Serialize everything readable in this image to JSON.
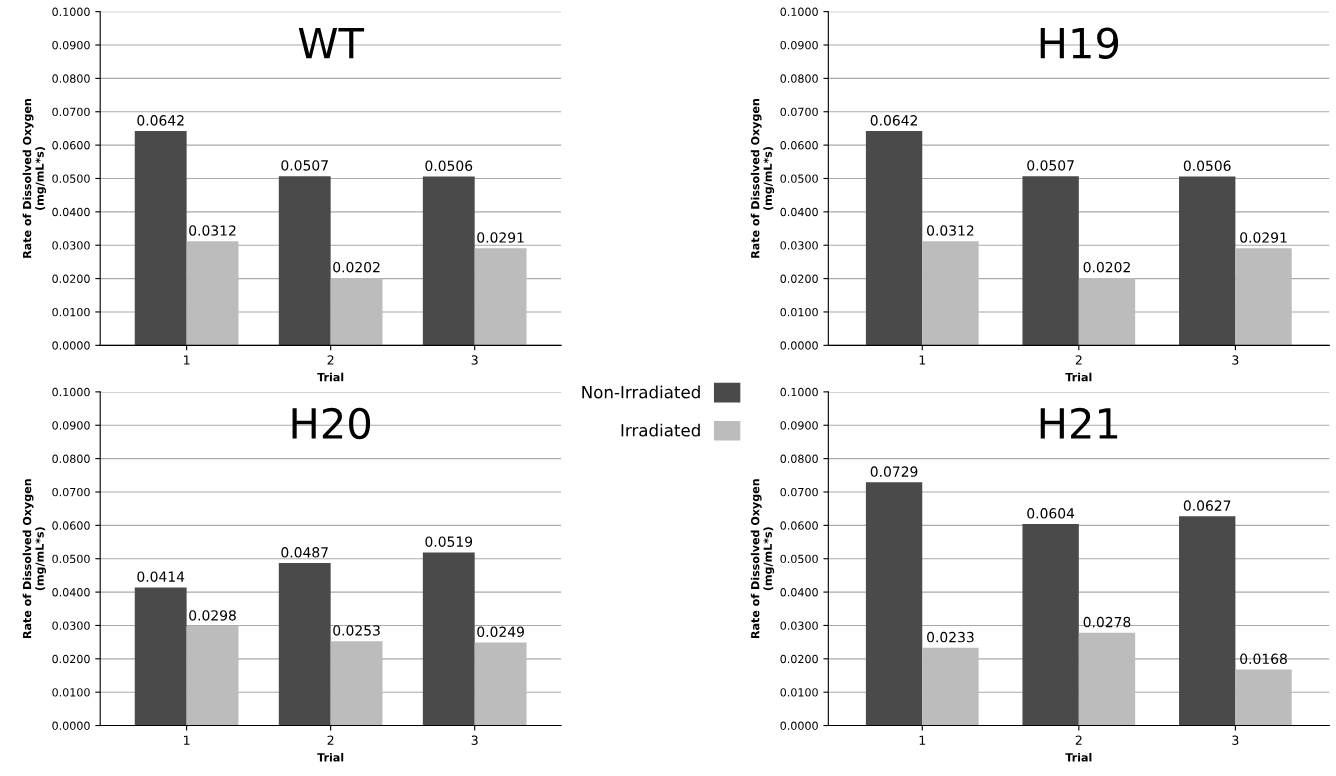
{
  "chart_data": [
    {
      "type": "bar",
      "title": "WT",
      "xlabel": "Trial",
      "ylabel": "Rate of Dissolved Oxygen\n(mg/mL*s)",
      "categories": [
        "1",
        "2",
        "3"
      ],
      "series": [
        {
          "color": "#4a4a4a",
          "values": [
            0.0642,
            0.0507,
            0.0506
          ]
        },
        {
          "color": "#bcbcbc",
          "values": [
            0.0312,
            0.0202,
            0.0291
          ]
        }
      ],
      "ylim": [
        0,
        0.1
      ],
      "yticks": [
        {
          "value": 0,
          "label": "0.0000"
        },
        {
          "value": 0.01,
          "label": "0.0100"
        },
        {
          "value": 0.02,
          "label": "0.0200"
        },
        {
          "value": 0.03,
          "label": "0.0300"
        },
        {
          "value": 0.04,
          "label": "0.0400"
        },
        {
          "value": 0.05,
          "label": "0.0500"
        },
        {
          "value": 0.06,
          "label": "0.0600"
        },
        {
          "value": 0.07,
          "label": "0.0700"
        },
        {
          "value": 0.08,
          "label": "0.0800"
        },
        {
          "value": 0.09,
          "label": "0.0900"
        },
        {
          "value": 0.1,
          "label": "0.1000"
        }
      ],
      "grid": "y",
      "data_labels": true
    },
    {
      "type": "bar",
      "title": "H19",
      "xlabel": "Trial",
      "ylabel": "Rate of Dissolved Oxygen\n(mg/mL*s)",
      "categories": [
        "1",
        "2",
        "3"
      ],
      "series": [
        {
          "color": "#4a4a4a",
          "values": [
            0.0642,
            0.0507,
            0.0506
          ]
        },
        {
          "color": "#bcbcbc",
          "values": [
            0.0312,
            0.0202,
            0.0291
          ]
        }
      ],
      "ylim": [
        0,
        0.1
      ],
      "yticks": [
        {
          "value": 0,
          "label": "0.0000"
        },
        {
          "value": 0.01,
          "label": "0.0100"
        },
        {
          "value": 0.02,
          "label": "0.0200"
        },
        {
          "value": 0.03,
          "label": "0.0300"
        },
        {
          "value": 0.04,
          "label": "0.0400"
        },
        {
          "value": 0.05,
          "label": "0.0500"
        },
        {
          "value": 0.06,
          "label": "0.0600"
        },
        {
          "value": 0.07,
          "label": "0.0700"
        },
        {
          "value": 0.08,
          "label": "0.0800"
        },
        {
          "value": 0.09,
          "label": "0.0900"
        },
        {
          "value": 0.1,
          "label": "0.1000"
        }
      ],
      "grid": "y",
      "data_labels": true
    },
    {
      "type": "bar",
      "title": "H20",
      "xlabel": "Trial",
      "ylabel": "Rate of Dissolved Oxygen\n(mg/mL*s)",
      "categories": [
        "1",
        "2",
        "3"
      ],
      "series": [
        {
          "name": "Non-Irradiated",
          "color": "#4a4a4a",
          "values": [
            0.0414,
            0.0487,
            0.0519
          ]
        },
        {
          "name": "Irradiated",
          "color": "#bcbcbc",
          "values": [
            0.0298,
            0.0253,
            0.0249
          ]
        }
      ],
      "ylim": [
        0,
        0.1
      ],
      "yticks": [
        {
          "value": 0,
          "label": "0.0000"
        },
        {
          "value": 0.01,
          "label": "0.0100"
        },
        {
          "value": 0.02,
          "label": "0.0200"
        },
        {
          "value": 0.03,
          "label": "0.0300"
        },
        {
          "value": 0.04,
          "label": "0.0400"
        },
        {
          "value": 0.05,
          "label": "0.0500"
        },
        {
          "value": 0.06,
          "label": "0.0600"
        },
        {
          "value": 0.07,
          "label": "0.0700"
        },
        {
          "value": 0.08,
          "label": "0.0800"
        },
        {
          "value": 0.09,
          "label": "0.0900"
        },
        {
          "value": 0.1,
          "label": "0.1000"
        }
      ],
      "grid": "y",
      "data_labels": true,
      "legend": "top right"
    },
    {
      "type": "bar",
      "title": "H21",
      "xlabel": "Trial",
      "ylabel": "Rate of Dissolved Oxygen\n(mg/mL*s)",
      "categories": [
        "1",
        "2",
        "3"
      ],
      "series": [
        {
          "color": "#4a4a4a",
          "values": [
            0.0729,
            0.0604,
            0.0627
          ]
        },
        {
          "color": "#bcbcbc",
          "values": [
            0.0233,
            0.0278,
            0.0168
          ]
        }
      ],
      "ylim": [
        0,
        0.1
      ],
      "yticks": [
        {
          "value": 0,
          "label": "0.0000"
        },
        {
          "value": 0.01,
          "label": "0.0100"
        },
        {
          "value": 0.02,
          "label": "0.0200"
        },
        {
          "value": 0.03,
          "label": "0.0300"
        },
        {
          "value": 0.04,
          "label": "0.0400"
        },
        {
          "value": 0.05,
          "label": "0.0500"
        },
        {
          "value": 0.06,
          "label": "0.0600"
        },
        {
          "value": 0.07,
          "label": "0.0700"
        },
        {
          "value": 0.08,
          "label": "0.0800"
        },
        {
          "value": 0.09,
          "label": "0.0900"
        },
        {
          "value": 0.1,
          "label": "0.1000"
        }
      ],
      "grid": "y",
      "data_labels": true
    }
  ]
}
